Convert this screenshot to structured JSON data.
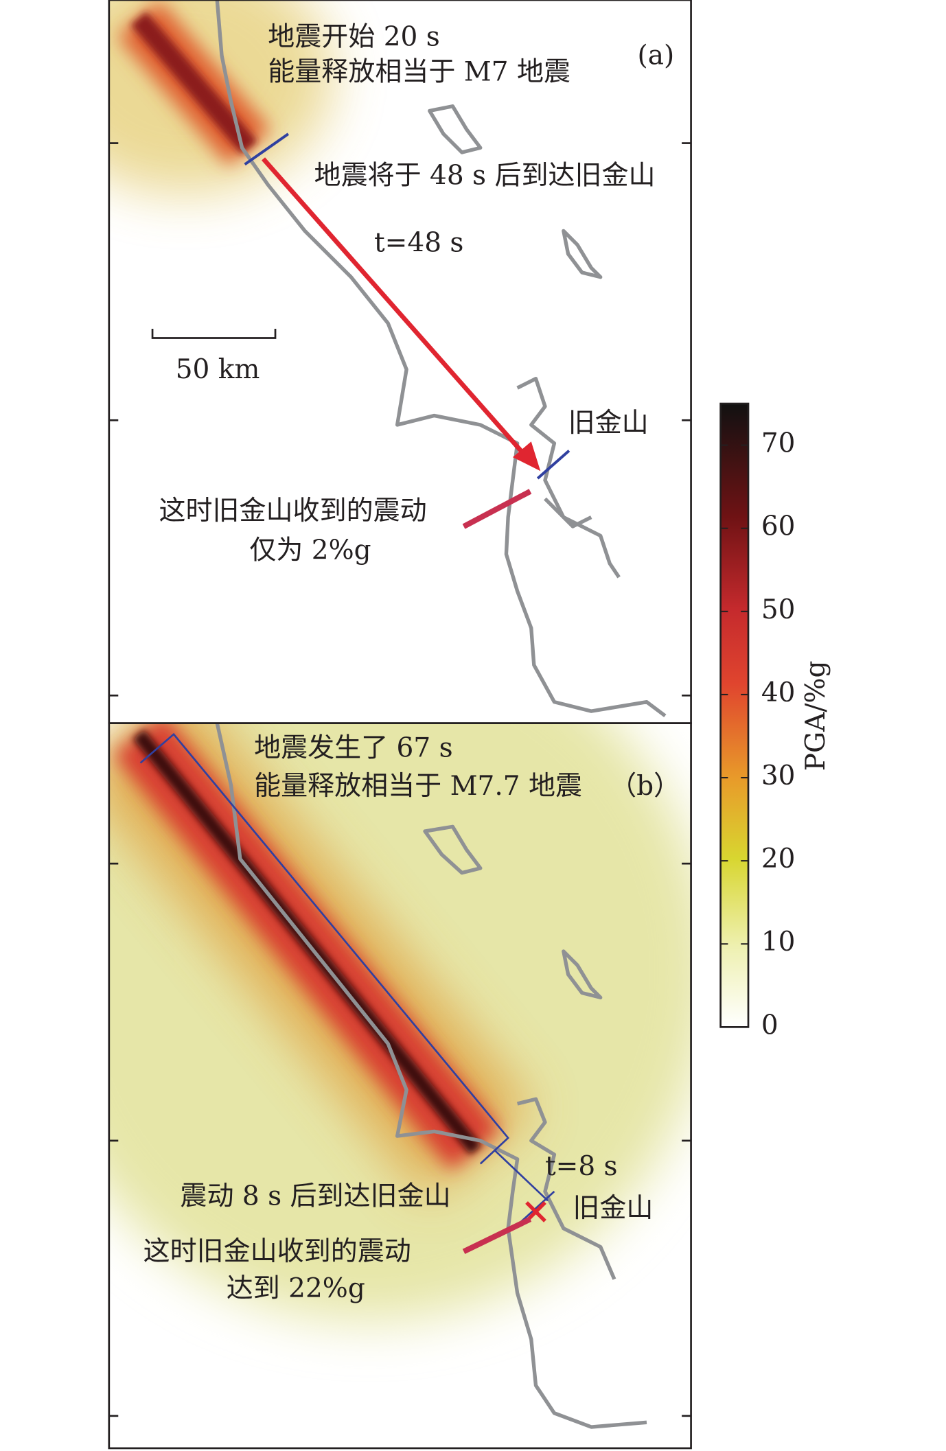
{
  "panels": [
    {
      "tag": "(a)",
      "line1": "地震开始 20 s",
      "line2": "能量释放相当于 M7 地震",
      "arrival": "地震将于 48 s 后到达旧金山",
      "travel": "t=48 s",
      "scale": "50 km",
      "city": "旧金山",
      "note1": "这时旧金山收到的震动",
      "note2": "仅为 2%g"
    },
    {
      "tag": "（b）",
      "line1": "地震发生了 67 s",
      "line2": "能量释放相当于 M7.7 地震",
      "arrival": "震动 8 s 后到达旧金山",
      "travel": "t=8 s",
      "city": "旧金山",
      "note1": "这时旧金山收到的震动",
      "note2": "达到 22%g"
    }
  ],
  "colorbar": {
    "label": "PGA/%g",
    "lim": [
      0,
      75
    ],
    "ticks": [
      0,
      10,
      20,
      30,
      40,
      50,
      60,
      70
    ]
  }
}
